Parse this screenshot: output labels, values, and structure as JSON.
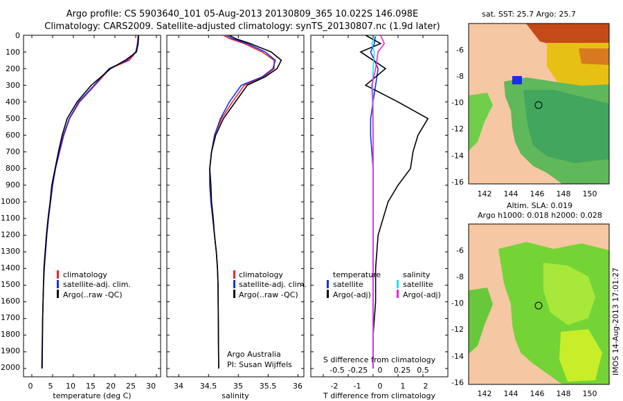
{
  "title": {
    "line1": "Argo profile: CS 5903640_101 05-Aug-2013 20130809_365 10.022S 146.098E",
    "line2": "Climatology: CARS2009. Satellite-adjusted climatology: synTS_20130807.nc (1.9d later)"
  },
  "depth_ticks": [
    "0",
    "100",
    "200",
    "300",
    "400",
    "500",
    "600",
    "700",
    "800",
    "900",
    "1000",
    "1100",
    "1200",
    "1300",
    "1400",
    "1500",
    "1600",
    "1700",
    "1800",
    "1900",
    "2000"
  ],
  "colors": {
    "climatology": "#ee2222",
    "satellite": "#1a2ee6",
    "argo": "#000000",
    "sat_salinity": "#22e0ee",
    "argo_adj_salinity": "#ee22dd",
    "land": "#f5c7a2"
  },
  "panels": {
    "temperature": {
      "xlabel": "temperature (deg C)",
      "xticks": [
        "0",
        "5",
        "10",
        "15",
        "20",
        "25",
        "30"
      ],
      "legend": [
        "climatology",
        "satellite-adj. clim.",
        "Argo(..raw -QC)"
      ]
    },
    "salinity": {
      "xlabel": "salinity",
      "xticks": [
        "34",
        "34.5",
        "35",
        "35.5",
        "36"
      ],
      "legend": [
        "climatology",
        "satellite-adj. clim.",
        "Argo(..raw -QC)"
      ],
      "note1": "Argo Australia",
      "note2": "PI: Susan Wijffels"
    },
    "difference": {
      "xlabel": "T difference from climatology",
      "xticks": [
        "-2",
        "-1",
        "0",
        "1",
        "2"
      ],
      "s_label": "S difference from climatology",
      "s_ticks": [
        "-0.5",
        "-0.25",
        "0",
        "0.25",
        "0.5"
      ],
      "legend_t_header": "temperature",
      "legend_s_header": "salinity",
      "legend_t": [
        "satellite",
        "Argo(-adj)"
      ],
      "legend_s": [
        "satellite",
        "Argo(-adj)"
      ]
    }
  },
  "maps": {
    "sst": {
      "title": "sat. SST: 25.7 Argo: 25.7"
    },
    "sla": {
      "title1": "Altim. SLA: 0.019",
      "title2": "Argo h1000: 0.018 h2000: 0.028"
    },
    "yticks": [
      "-6",
      "-8",
      "-10",
      "-12",
      "-14",
      "-16"
    ],
    "xticks": [
      "142",
      "144",
      "146",
      "148",
      "150"
    ]
  },
  "credit": "IMOS 14-Aug-2013 17:01:27",
  "chart_data": [
    {
      "type": "line",
      "title": "",
      "xlabel": "temperature (deg C)",
      "ylabel": "",
      "xlim": [
        -2,
        31
      ],
      "ylim": [
        2050,
        0
      ],
      "series": [
        {
          "name": "climatology",
          "x": [
            25.6,
            25.4,
            25.1,
            23.5,
            18.8,
            15.2,
            11.5,
            9.1,
            7.7,
            6.7,
            5.7,
            5.0,
            4.5,
            4.0,
            3.6,
            3.3,
            3.0,
            2.8,
            2.7,
            2.6,
            2.5
          ],
          "y": [
            0,
            50,
            100,
            150,
            200,
            300,
            400,
            500,
            600,
            700,
            800,
            900,
            1000,
            1100,
            1200,
            1300,
            1400,
            1500,
            1600,
            1700,
            2000
          ]
        },
        {
          "name": "satellite-adj. clim.",
          "x": [
            25.7,
            25.5,
            25.0,
            23.0,
            18.6,
            15.0,
            11.3,
            9.0,
            7.6,
            6.6,
            5.7,
            5.0,
            4.5,
            4.0,
            3.6,
            3.3,
            3.0,
            2.8,
            2.7,
            2.6,
            2.5
          ],
          "y": [
            0,
            50,
            100,
            150,
            200,
            300,
            400,
            500,
            600,
            700,
            800,
            900,
            1000,
            1100,
            1200,
            1300,
            1400,
            1500,
            1600,
            1700,
            2000
          ]
        },
        {
          "name": "Argo(..raw -QC)",
          "x": [
            25.7,
            25.6,
            25.2,
            22.5,
            19.0,
            14.3,
            10.9,
            8.5,
            7.3,
            6.4,
            5.6,
            4.8,
            4.4,
            3.9,
            3.5,
            3.2,
            2.9,
            2.8,
            2.7,
            2.6,
            2.4
          ],
          "y": [
            0,
            50,
            100,
            150,
            200,
            300,
            400,
            500,
            600,
            700,
            800,
            900,
            1000,
            1100,
            1200,
            1300,
            1400,
            1500,
            1600,
            1700,
            2000
          ]
        }
      ]
    },
    {
      "type": "line",
      "title": "",
      "xlabel": "salinity",
      "ylabel": "",
      "xlim": [
        33.8,
        36.1
      ],
      "ylim": [
        2050,
        0
      ],
      "series": [
        {
          "name": "climatology",
          "x": [
            34.75,
            34.85,
            35.1,
            35.4,
            35.6,
            35.6,
            35.42,
            35.1,
            34.9,
            34.72,
            34.6,
            34.55,
            34.52,
            34.52,
            34.54,
            34.57,
            34.6,
            34.63,
            34.65,
            34.66,
            34.67
          ],
          "y": [
            0,
            20,
            50,
            100,
            150,
            200,
            250,
            300,
            400,
            500,
            600,
            700,
            800,
            900,
            1000,
            1100,
            1200,
            1300,
            1400,
            1500,
            2000
          ]
        },
        {
          "name": "satellite-adj. clim.",
          "x": [
            34.8,
            34.9,
            35.15,
            35.45,
            35.62,
            35.58,
            35.4,
            35.05,
            34.85,
            34.7,
            34.6,
            34.55,
            34.52,
            34.52,
            34.54,
            34.57,
            34.6,
            34.63,
            34.65,
            34.66,
            34.67
          ],
          "y": [
            0,
            20,
            50,
            100,
            150,
            200,
            250,
            300,
            400,
            500,
            600,
            700,
            800,
            900,
            1000,
            1100,
            1200,
            1300,
            1400,
            1500,
            2000
          ]
        },
        {
          "name": "Argo(..raw -QC)",
          "x": [
            34.85,
            34.95,
            35.2,
            35.55,
            35.72,
            35.65,
            35.45,
            35.15,
            34.95,
            34.75,
            34.62,
            34.55,
            34.52,
            34.54,
            34.55,
            34.58,
            34.6,
            34.63,
            34.65,
            34.66,
            34.67
          ],
          "y": [
            0,
            20,
            50,
            100,
            150,
            200,
            250,
            300,
            400,
            500,
            600,
            700,
            800,
            900,
            1000,
            1100,
            1200,
            1300,
            1400,
            1500,
            2000
          ]
        }
      ]
    },
    {
      "type": "line",
      "title": "",
      "xlabel": "T difference from climatology",
      "ylabel": "",
      "xlim": [
        -2.5,
        3.0
      ],
      "ylim": [
        2050,
        0
      ],
      "series": [
        {
          "name": "temperature satellite",
          "x": [
            0.1,
            0.05,
            -0.1,
            0.2,
            0.1,
            0.0,
            -0.1,
            -0.1,
            -0.05,
            0.0,
            0.0,
            0.0,
            0.0,
            0.0,
            0.0,
            0.0,
            0.0
          ],
          "y": [
            0,
            50,
            100,
            200,
            300,
            400,
            500,
            600,
            700,
            800,
            900,
            1000,
            1200,
            1400,
            1600,
            1800,
            2000
          ]
        },
        {
          "name": "temperature Argo(-adj)",
          "x": [
            -0.3,
            0.3,
            -0.5,
            0.5,
            -0.3,
            1.0,
            2.2,
            1.8,
            1.6,
            1.5,
            1.0,
            0.6,
            0.2,
            0.1,
            0.1,
            0.0,
            0.0
          ],
          "y": [
            0,
            50,
            100,
            200,
            300,
            400,
            500,
            600,
            700,
            800,
            900,
            1000,
            1200,
            1400,
            1600,
            1800,
            2000
          ]
        },
        {
          "name": "salinity satellite",
          "x": [
            0.1,
            -0.05,
            0.05,
            0.0,
            -0.02,
            0.0,
            0.0,
            0.0,
            0.0,
            0.0,
            0.0,
            0.0
          ],
          "y": [
            0,
            50,
            100,
            200,
            300,
            400,
            600,
            800,
            1000,
            1400,
            1800,
            2000
          ]
        },
        {
          "name": "salinity Argo(-adj)",
          "x": [
            0.3,
            0.45,
            0.2,
            0.1,
            -0.05,
            -0.02,
            0.0,
            0.0,
            0.0,
            0.0,
            0.0,
            0.0
          ],
          "y": [
            0,
            50,
            100,
            200,
            300,
            400,
            600,
            800,
            1000,
            1400,
            1800,
            2000
          ]
        }
      ]
    }
  ]
}
